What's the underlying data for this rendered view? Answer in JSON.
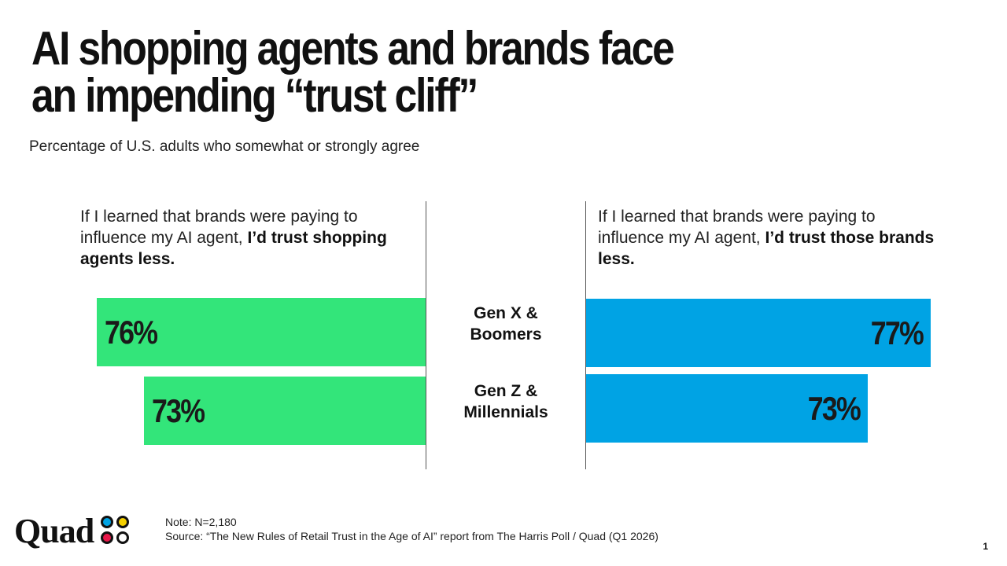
{
  "title_lines": [
    "AI shopping agents and brands face",
    "an impending “trust cliff”"
  ],
  "subtitle": "Percentage of U.S. adults who somewhat or strongly agree",
  "chart_data": [
    {
      "type": "bar",
      "orientation": "horizontal",
      "direction": "right-to-left",
      "title_plain": "If I learned that brands were paying to influence my AI agent,",
      "title_bold": "I’d trust shopping agents less.",
      "categories": [
        "Gen X & Boomers",
        "Gen Z & Millennials"
      ],
      "values": [
        76,
        73
      ],
      "labels": [
        "76%",
        "73%"
      ],
      "color": "#33E57A"
    },
    {
      "type": "bar",
      "orientation": "horizontal",
      "direction": "left-to-right",
      "title_plain": "If I learned that brands were paying to influence my AI agent,",
      "title_bold": "I’d trust those brands less.",
      "categories": [
        "Gen X & Boomers",
        "Gen Z & Millennials"
      ],
      "values": [
        77,
        73
      ],
      "labels": [
        "77%",
        "73%"
      ],
      "color": "#00A3E4"
    }
  ],
  "categories": [
    {
      "line1": "Gen X &",
      "line2": "Boomers"
    },
    {
      "line1": "Gen Z &",
      "line2": "Millennials"
    }
  ],
  "footer": {
    "note": "Note: N=2,180",
    "source": "Source: “The New Rules of Retail Trust in the Age of AI” report from The Harris Poll / Quad (Q1 2026)",
    "logo": "Quad",
    "page_number": "1"
  }
}
